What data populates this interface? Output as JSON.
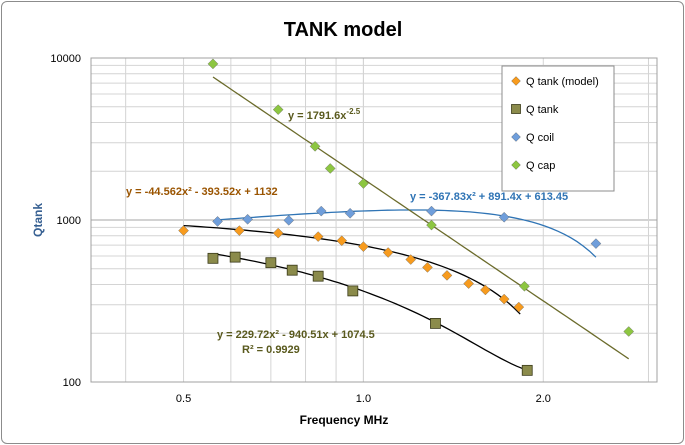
{
  "chart_data": {
    "type": "scatter",
    "title": "TANK model",
    "xlabel": "Frequency MHz",
    "ylabel": "Qtank",
    "x_scale": "log",
    "y_scale": "log",
    "xlim": [
      0.35,
      3.1
    ],
    "ylim": [
      100,
      10000
    ],
    "x_ticks": [
      0.5,
      1.0,
      2.0
    ],
    "x_tick_labels": [
      "0.5",
      "1.0",
      "2.0"
    ],
    "y_ticks": [
      100,
      1000,
      10000
    ],
    "y_tick_labels": [
      "100",
      "1000",
      "10000"
    ],
    "grid": "log-minor",
    "legend_position": "top-right",
    "series": [
      {
        "name": "Q tank (model)",
        "marker": "diamond",
        "color": "#f79b1e",
        "points": [
          [
            0.5,
            860
          ],
          [
            0.62,
            860
          ],
          [
            0.72,
            830
          ],
          [
            0.84,
            790
          ],
          [
            0.92,
            745
          ],
          [
            1.0,
            685
          ],
          [
            1.1,
            630
          ],
          [
            1.2,
            570
          ],
          [
            1.28,
            510
          ],
          [
            1.38,
            455
          ],
          [
            1.5,
            405
          ],
          [
            1.6,
            370
          ],
          [
            1.72,
            325
          ],
          [
            1.82,
            290
          ]
        ]
      },
      {
        "name": "Q tank",
        "marker": "square",
        "color": "#8b8b4b",
        "points": [
          [
            0.56,
            580
          ],
          [
            0.61,
            590
          ],
          [
            0.7,
            545
          ],
          [
            0.76,
            490
          ],
          [
            0.84,
            450
          ],
          [
            0.96,
            365
          ],
          [
            1.32,
            230
          ],
          [
            1.88,
            118
          ]
        ]
      },
      {
        "name": "Q coil",
        "marker": "diamond",
        "color": "#6f9edb",
        "points": [
          [
            0.57,
            980
          ],
          [
            0.64,
            1010
          ],
          [
            0.75,
            995
          ],
          [
            0.85,
            1135
          ],
          [
            0.95,
            1100
          ],
          [
            1.3,
            1135
          ],
          [
            1.72,
            1040
          ],
          [
            2.45,
            715
          ]
        ]
      },
      {
        "name": "Q cap",
        "marker": "diamond",
        "color": "#8dc641",
        "points": [
          [
            0.56,
            9200
          ],
          [
            0.72,
            4800
          ],
          [
            0.83,
            2850
          ],
          [
            0.88,
            2080
          ],
          [
            1.0,
            1680
          ],
          [
            1.3,
            930
          ],
          [
            1.86,
            390
          ],
          [
            2.78,
            205
          ]
        ]
      }
    ],
    "trendlines": [
      {
        "series": "Q tank (model)",
        "type": "polynomial",
        "coeffs": [
          -44.562,
          -393.52,
          1132
        ],
        "x_range": [
          0.5,
          1.83
        ],
        "color": "#000000",
        "label": "y = -44.562x² - 393.52x + 1132",
        "label_color": "#9a5400"
      },
      {
        "series": "Q tank",
        "type": "polynomial",
        "coeffs": [
          229.72,
          -940.51,
          1074.5
        ],
        "x_range": [
          0.56,
          1.88
        ],
        "color": "#000000",
        "label": "y = 229.72x² - 940.51x + 1074.5",
        "label2": "R² = 0.9929",
        "label_color": "#5a5a1e"
      },
      {
        "series": "Q coil",
        "type": "polynomial",
        "coeffs": [
          -367.83,
          891.4,
          613.45
        ],
        "x_range": [
          0.57,
          2.45
        ],
        "color": "#2f74b5",
        "label": "y = -367.83x² + 891.4x + 613.45",
        "label_color": "#2f74b5"
      },
      {
        "series": "Q cap",
        "type": "power",
        "coeff": 1791.6,
        "exponent": -2.5,
        "x_range": [
          0.56,
          2.78
        ],
        "color": "#6b6b2b",
        "label_base": "y = 1791.6x",
        "label_sup": "-2.5",
        "label_color": "#5a5a1e"
      }
    ]
  }
}
